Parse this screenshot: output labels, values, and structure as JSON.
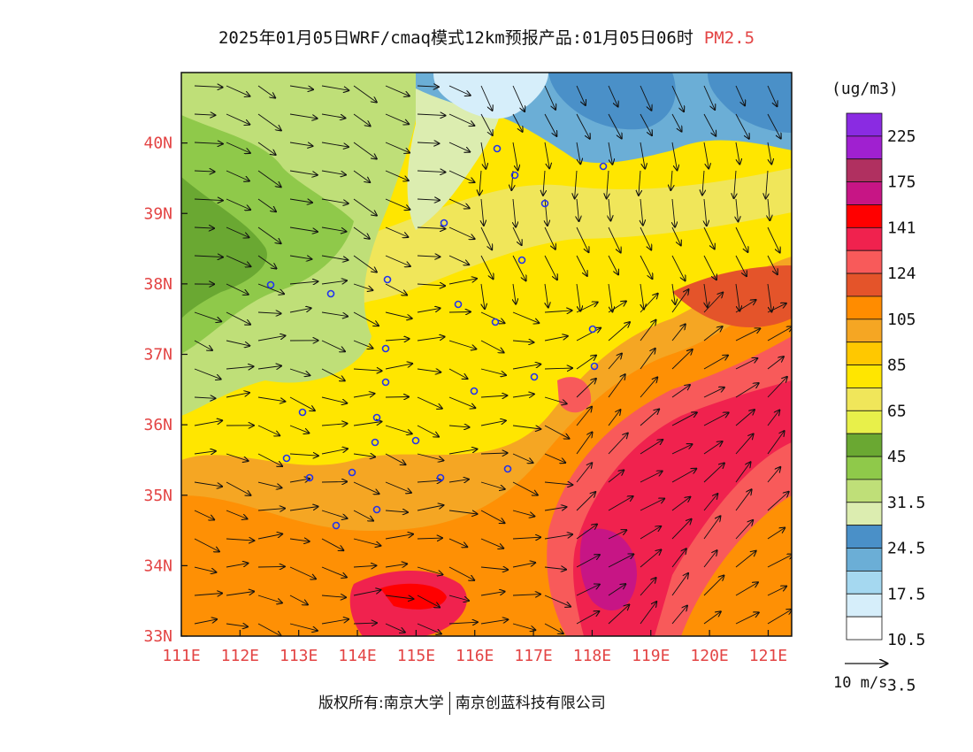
{
  "title": {
    "main": "2025年01月05日WRF/cmaq模式12km预报产品:01月05日06时",
    "variable": "PM2.5"
  },
  "map": {
    "lon_range": [
      111,
      121.4
    ],
    "lat_range": [
      33,
      41
    ],
    "lon_ticks": [
      "111E",
      "112E",
      "113E",
      "114E",
      "115E",
      "116E",
      "117E",
      "118E",
      "119E",
      "120E",
      "121E"
    ],
    "lat_ticks": [
      "33N",
      "34N",
      "35N",
      "36N",
      "37N",
      "38N",
      "39N",
      "40N"
    ],
    "tick_color": "#e34444"
  },
  "legend": {
    "unit": "(ug/m3)",
    "labels": [
      "225",
      "175",
      "141",
      "124",
      "105",
      "85",
      "65",
      "45",
      "31.5",
      "24.5",
      "17.5",
      "10.5",
      "3.5"
    ],
    "colors": [
      "#8a2be2",
      "#a020d0",
      "#b03060",
      "#c71585",
      "#ff0000",
      "#f0224e",
      "#f85a5a",
      "#e4542a",
      "#ff8c00",
      "#f5a623",
      "#ffc800",
      "#ffe600",
      "#f0e65a",
      "#e8f04a",
      "#6aa832",
      "#8fc94a",
      "#bfdf78",
      "#dcedb0",
      "#4a90c8",
      "#6baed6",
      "#a5d8f0",
      "#d6eefa",
      "#ffffff"
    ]
  },
  "vector": {
    "label": "10 m/s"
  },
  "footer": {
    "owner_label": "版权所有:",
    "org1": "南京大学",
    "org2": "南京创蓝科技有限公司"
  }
}
